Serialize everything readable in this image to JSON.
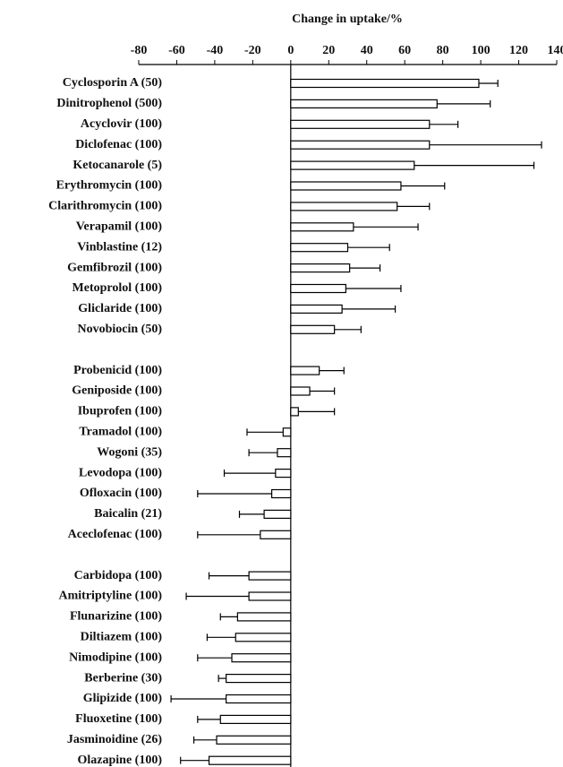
{
  "chart_data": {
    "type": "bar",
    "orientation": "horizontal",
    "x_label": "Change in uptake/%",
    "categories": [
      "Cyclosporin A (50)",
      "Dinitrophenol (500)",
      "Acyclovir (100)",
      "Diclofenac (100)",
      "Ketocanarole (5)",
      "Erythromycin (100)",
      "Clarithromycin (100)",
      "Verapamil (100)",
      "Vinblastine (12)",
      "Gemfibrozil (100)",
      "Metoprolol (100)",
      "Gliclaride (100)",
      "Novobiocin (50)",
      null,
      "Probenicid (100)",
      "Geniposide (100)",
      "Ibuprofen (100)",
      "Tramadol (100)",
      "Wogoni (35)",
      "Levodopa (100)",
      "Ofloxacin (100)",
      "Baicalin (21)",
      "Aceclofenac (100)",
      null,
      "Carbidopa (100)",
      "Amitriptyline (100)",
      "Flunarizine (100)",
      "Diltiazem (100)",
      "Nimodipine (100)",
      "Berberine (30)",
      "Glipizide (100)",
      "Fluoxetine (100)",
      "Jasminoidine (26)",
      "Olazapine (100)"
    ],
    "values": [
      99,
      77,
      73,
      73,
      65,
      58,
      56,
      33,
      30,
      31,
      29,
      27,
      23,
      null,
      15,
      10,
      4,
      -4,
      -7,
      -8,
      -10,
      -14,
      -16,
      null,
      -22,
      -22,
      -28,
      -29,
      -31,
      -34,
      -34,
      -37,
      -39,
      -43
    ],
    "errors": [
      10,
      28,
      15,
      59,
      63,
      23,
      17,
      34,
      22,
      16,
      29,
      28,
      14,
      null,
      13,
      13,
      19,
      19,
      15,
      27,
      39,
      13,
      33,
      null,
      21,
      33,
      9,
      15,
      18,
      4,
      29,
      12,
      12,
      15
    ],
    "color": "#ffffff",
    "xlim": [
      -80,
      140
    ],
    "xticks": [
      -80,
      -60,
      -40,
      -20,
      0,
      20,
      40,
      60,
      80,
      100,
      120,
      140
    ]
  }
}
